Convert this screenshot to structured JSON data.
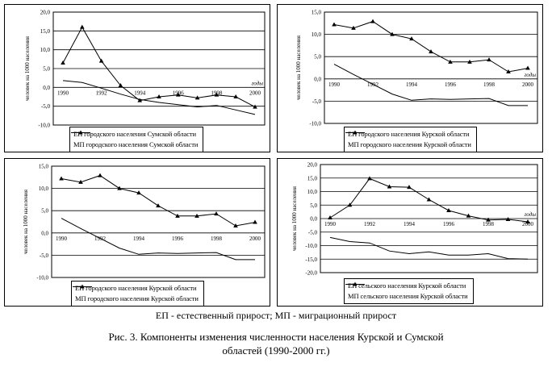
{
  "chart_data": [
    {
      "type": "line",
      "ylabel": "человек на 1000 населения",
      "xname": "годы",
      "ylim": [
        -10,
        20
      ],
      "yticks": [
        "20,0",
        "15,0",
        "10,0",
        "5,0",
        "0,0",
        "-5,0",
        "-10,0"
      ],
      "xticks": [
        "1990",
        "1992",
        "1994",
        "1996",
        "1998",
        "2000"
      ],
      "x": [
        1990,
        1991,
        1992,
        1993,
        1994,
        1995,
        1996,
        1997,
        1998,
        1999,
        2000
      ],
      "series": [
        {
          "name": "ЕП городского населения Сумской области",
          "marker": "none",
          "values": [
            1.8,
            1.3,
            -0.2,
            -1.8,
            -3.2,
            -4.0,
            -4.6,
            -5.2,
            -4.8,
            -6.0,
            -7.2
          ]
        },
        {
          "name": "МП городского населения Сумской области",
          "marker": "triangle",
          "values": [
            6.5,
            16.0,
            7.0,
            0.5,
            -3.5,
            -2.5,
            -2.0,
            -2.8,
            -2.0,
            -2.5,
            -5.2
          ]
        }
      ]
    },
    {
      "type": "line",
      "ylabel": "человек на 1000 населения",
      "xname": "годы",
      "ylim": [
        -10,
        15
      ],
      "yticks": [
        "15,0",
        "10,0",
        "5,0",
        "0,0",
        "-5,0",
        "-10,0"
      ],
      "xticks": [
        "1990",
        "1992",
        "1994",
        "1996",
        "1998",
        "2000"
      ],
      "x": [
        1990,
        1991,
        1992,
        1993,
        1994,
        1995,
        1996,
        1997,
        1998,
        1999,
        2000
      ],
      "series": [
        {
          "name": "ЕП городского населения Курской области",
          "marker": "none",
          "values": [
            3.3,
            1.0,
            -1.2,
            -3.4,
            -4.8,
            -4.5,
            -4.6,
            -4.5,
            -4.4,
            -6.0,
            -6.0
          ]
        },
        {
          "name": "МП городского населения Курской области",
          "marker": "triangle",
          "values": [
            12.2,
            11.4,
            12.9,
            10.0,
            9.0,
            6.1,
            3.8,
            3.8,
            4.3,
            1.6,
            2.4
          ]
        }
      ]
    },
    {
      "type": "line",
      "ylabel": "человек на 1000 населения",
      "ylim": [
        -10,
        15
      ],
      "yticks": [
        "15,0",
        "10,0",
        "5,0",
        "0,0",
        "-5,0",
        "-10,0"
      ],
      "xticks": [
        "1990",
        "1992",
        "1994",
        "1996",
        "1998",
        "2000"
      ],
      "x": [
        1990,
        1991,
        1992,
        1993,
        1994,
        1995,
        1996,
        1997,
        1998,
        1999,
        2000
      ],
      "series": [
        {
          "name": "ЕП городского населения Курской области",
          "marker": "none",
          "values": [
            3.3,
            1.0,
            -1.2,
            -3.4,
            -4.8,
            -4.5,
            -4.6,
            -4.5,
            -4.4,
            -6.0,
            -6.0
          ]
        },
        {
          "name": "МП городского населения Курской области",
          "marker": "triangle",
          "values": [
            12.2,
            11.4,
            12.9,
            10.0,
            9.0,
            6.1,
            3.8,
            3.8,
            4.3,
            1.6,
            2.4
          ]
        }
      ]
    },
    {
      "type": "line",
      "ylabel": "человек на 1000 населения",
      "xname": "годы",
      "ylim": [
        -20,
        20
      ],
      "yticks": [
        "20,0",
        "15,0",
        "10,0",
        "5,0",
        "0,0",
        "-5,0",
        "-10,0",
        "-15,0",
        "-20,0"
      ],
      "xticks": [
        "1990",
        "1992",
        "1994",
        "1996",
        "1998",
        "2000"
      ],
      "x": [
        1990,
        1991,
        1992,
        1993,
        1994,
        1995,
        1996,
        1997,
        1998,
        1999,
        2000
      ],
      "series": [
        {
          "name": "ЕП сельского населения Курской области",
          "marker": "none",
          "values": [
            -7.0,
            -8.5,
            -9.0,
            -12.0,
            -13.0,
            -12.3,
            -13.5,
            -13.5,
            -13.0,
            -14.8,
            -15.0
          ]
        },
        {
          "name": "МП сельского населения Курской области",
          "marker": "triangle",
          "values": [
            0.3,
            5.0,
            14.8,
            11.8,
            11.6,
            7.0,
            3.0,
            1.0,
            -0.5,
            -0.3,
            -1.2
          ]
        }
      ]
    }
  ],
  "note": "ЕП - естественный прирост; МП - миграционный прирост",
  "caption": {
    "line1": "Рис. 3. Компоненты изменения численности населения Курской и Сумской",
    "line2": "областей (1990-2000 гг.)"
  },
  "colors": {
    "line": "#000000",
    "grid": "#000000",
    "frame": "#000000"
  }
}
